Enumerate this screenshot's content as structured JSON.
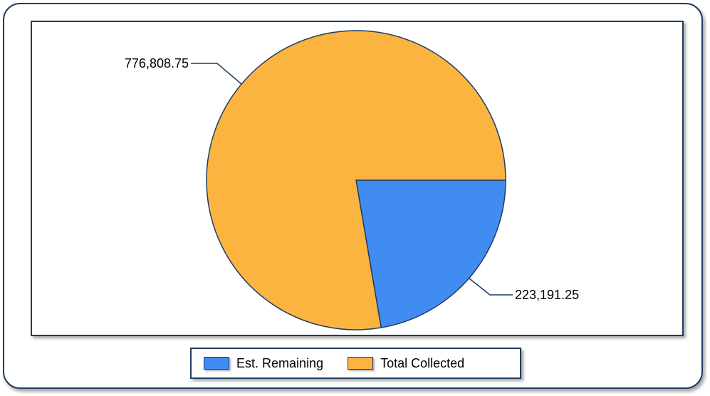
{
  "chart_data": {
    "type": "pie",
    "title": "",
    "slices": [
      {
        "label": "Est. Remaining",
        "value": 223191.25,
        "display": "223,191.25",
        "color": "#418cf0"
      },
      {
        "label": "Total Collected",
        "value": 776808.75,
        "display": "776,808.75",
        "color": "#fcb441"
      }
    ],
    "legend_placement": "bottom"
  },
  "legend": {
    "items": [
      {
        "label": "Est. Remaining",
        "color": "#418cf0"
      },
      {
        "label": "Total Collected",
        "color": "#fcb441"
      }
    ]
  }
}
